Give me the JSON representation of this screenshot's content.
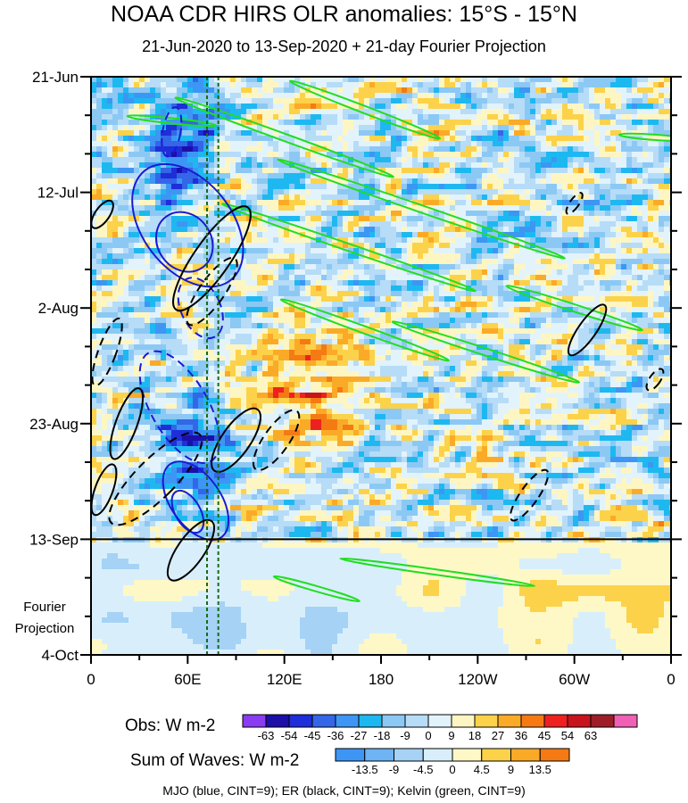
{
  "title": "NOAA CDR HIRS OLR anomalies: 15°S - 15°N",
  "subtitle": "21-Jun-2020 to 13-Sep-2020 + 21-day Fourier Projection",
  "chart_data": {
    "type": "heatmap",
    "xlabel": "",
    "ylabel": "",
    "x_tick_labels": [
      "0",
      "60E",
      "120E",
      "180",
      "120W",
      "60W",
      "0"
    ],
    "x_ticks_deg": [
      0,
      60,
      120,
      180,
      240,
      300,
      360
    ],
    "y_tick_labels": [
      "21-Jun",
      "12-Jul",
      "2-Aug",
      "23-Aug",
      "13-Sep",
      "4-Oct"
    ],
    "y_ticks_day": [
      0,
      21,
      42,
      63,
      84,
      105
    ],
    "x_range_deg": [
      0,
      360
    ],
    "y_range_day": [
      0,
      105
    ],
    "observation_end_day": 84,
    "forecast_label": [
      "Fourier",
      "Projection"
    ],
    "mjo_phase_lines_deg": [
      72,
      79
    ],
    "obs_colorbar": {
      "label": "Obs: W m-2",
      "levels": [
        "-63",
        "-54",
        "-45",
        "-36",
        "-27",
        "-18",
        "-9",
        "0",
        "9",
        "18",
        "27",
        "36",
        "45",
        "54",
        "63"
      ],
      "colors": [
        "#8a3cf0",
        "#1c0fa8",
        "#1e2ed8",
        "#3466e8",
        "#3d96f4",
        "#1eb8f0",
        "#8cc8f4",
        "#b6dcf7",
        "#e2f3fb",
        "#fef6c2",
        "#fbd24a",
        "#fbaa28",
        "#f57a14",
        "#ee2020",
        "#c8141c",
        "#9e1e28",
        "#f060b4"
      ]
    },
    "waves_colorbar": {
      "label": "Sum of Waves: W m-2",
      "levels": [
        "-13.5",
        "-9",
        "-4.5",
        "0",
        "4.5",
        "9",
        "13.5"
      ],
      "colors": [
        "#3d96f4",
        "#6eb4f4",
        "#a6d2f6",
        "#d8effb",
        "#fef8c6",
        "#fbd24a",
        "#fbaa28",
        "#f57a14"
      ]
    },
    "contours": {
      "mjo": {
        "color": "#1a1ad2",
        "cint": 9
      },
      "er": {
        "color": "#000000",
        "cint": 9
      },
      "kelvin": {
        "color": "#22dd22",
        "cint": 9
      }
    },
    "legend_text": "MJO (blue, CINT=9); ER (black, CINT=9); Kelvin (green, CINT=9)"
  }
}
